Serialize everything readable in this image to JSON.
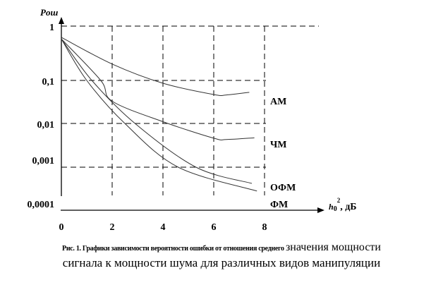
{
  "chart_data": {
    "type": "line",
    "title": "",
    "ylabel": "Pош",
    "xlabel_main": "h",
    "xlabel_sub": "0",
    "xlabel_sup": "2",
    "xlabel_unit": ", дБ",
    "xlim": [
      0,
      8
    ],
    "ylim": [
      0.0001,
      1
    ],
    "yscale": "log",
    "grid": true,
    "x_ticks": [
      "0",
      "2",
      "4",
      "6",
      "8"
    ],
    "y_ticks": [
      "1",
      "0,1",
      "0,01",
      "0,001",
      "0,0001"
    ],
    "series": [
      {
        "name": "АМ",
        "x": [
          0,
          2,
          4,
          6,
          6.5,
          7.4
        ],
        "y": [
          0.62,
          0.2,
          0.086,
          0.047,
          0.046,
          0.053
        ]
      },
      {
        "name": "ЧМ",
        "x": [
          0,
          1.55,
          2,
          4,
          6,
          6.5,
          7.6
        ],
        "y": [
          0.58,
          0.1,
          0.033,
          0.011,
          0.0046,
          0.0043,
          0.0047
        ]
      },
      {
        "name": "ОФМ",
        "x": [
          0,
          1.2,
          2.9,
          5.3,
          7.5
        ],
        "y": [
          0.58,
          0.1,
          0.01,
          0.001,
          0.00042
        ]
      },
      {
        "name": "ФМ",
        "x": [
          0,
          1.0,
          2.5,
          4.6,
          7.7
        ],
        "y": [
          0.58,
          0.1,
          0.01,
          0.001,
          0.00028
        ]
      }
    ]
  },
  "caption": {
    "line1_small": "Рис. 1. Графики зависимости вероятности ошибки от отношения среднего",
    "line1_big": "значения мощности",
    "line2": "сигнала к мощности шума для различных видов манипуляции"
  }
}
